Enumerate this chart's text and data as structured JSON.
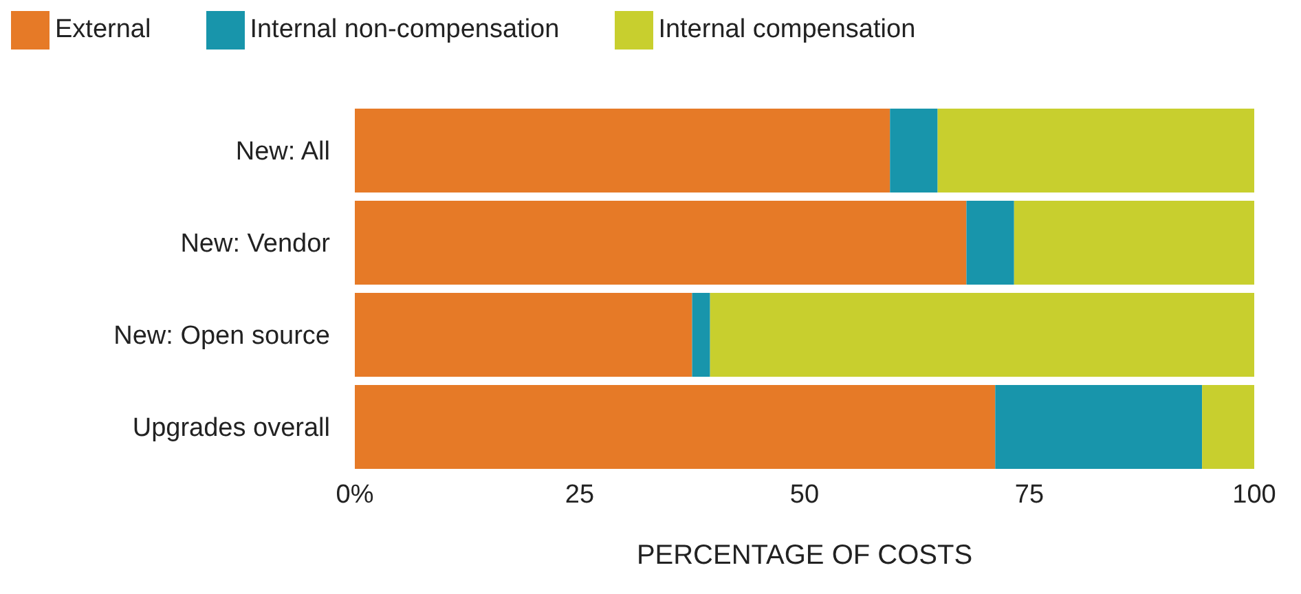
{
  "chart_data": {
    "type": "bar",
    "orientation": "horizontal",
    "stacked": true,
    "xlabel": "PERCENTAGE OF COSTS",
    "categories": [
      "New: All",
      "New: Vendor",
      "New: Open source",
      "Upgrades overall"
    ],
    "series": [
      {
        "name": "External",
        "color": "#e67a27",
        "values": [
          59.5,
          68,
          37.5,
          71.2
        ]
      },
      {
        "name": "Internal non-compensation",
        "color": "#1895ab",
        "values": [
          5.3,
          5.3,
          2,
          23
        ]
      },
      {
        "name": "Internal compensation",
        "color": "#c8cf2e",
        "values": [
          35.2,
          26.7,
          60.5,
          5.8
        ]
      }
    ],
    "xlim": [
      0,
      100
    ],
    "xticks": [
      {
        "value": 0,
        "label": "0%"
      },
      25,
      50,
      75,
      100
    ],
    "legend": "top left",
    "grid": false
  }
}
